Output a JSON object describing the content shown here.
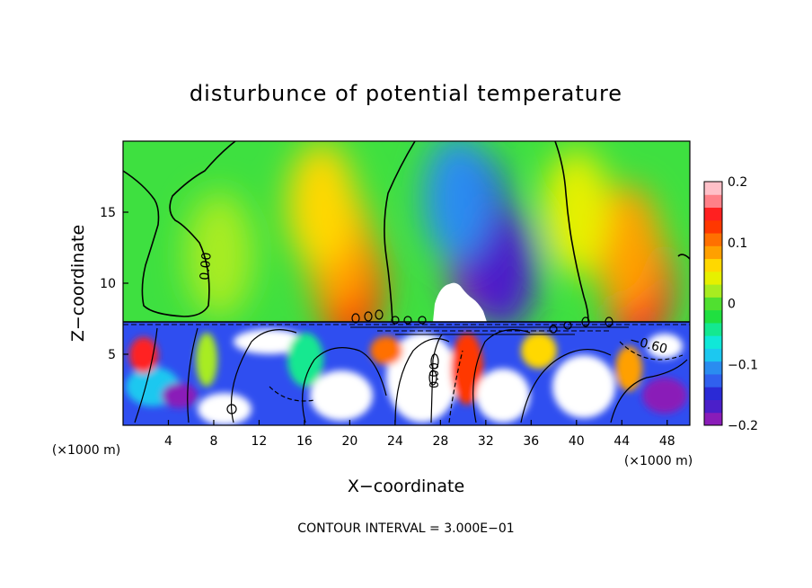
{
  "chart_data": {
    "type": "heatmap",
    "title": "disturbunce of potential temperature",
    "xlabel": "X−coordinate",
    "ylabel": "Z−coordinate",
    "x_unit": "(×1000 m)",
    "y_unit": "(×1000 m)",
    "xlim": [
      0,
      50
    ],
    "ylim": [
      0,
      20
    ],
    "x_ticks": [
      4,
      8,
      12,
      16,
      20,
      24,
      28,
      32,
      36,
      40,
      44,
      48
    ],
    "y_ticks": [
      5,
      10,
      15
    ],
    "colorbar": {
      "min": -0.2,
      "max": 0.2,
      "tick_values": [
        0.2,
        0.1,
        0,
        -0.1,
        -0.2
      ],
      "tick_labels": [
        "0.2",
        "0.1",
        "0",
        "−0.1",
        "−0.2"
      ],
      "colors": [
        "#8a1cb8",
        "#4b1fc9",
        "#2a2ad6",
        "#3060ee",
        "#2a8cf0",
        "#1cc8f0",
        "#10e8d8",
        "#14e890",
        "#20e040",
        "#50e030",
        "#a8ec20",
        "#e6f000",
        "#ffd800",
        "#ffa000",
        "#ff7000",
        "#ff3800",
        "#ff2020",
        "#ff8088",
        "#ffc0c8"
      ]
    },
    "contour_labels": [
      "0.00",
      "0.00",
      "−0.60"
    ],
    "annotation": "CONTOUR INTERVAL = 3.000E−01",
    "features": [
      {
        "x": 31.5,
        "z": 12.0,
        "value": -0.19
      },
      {
        "x": 31.0,
        "z": 15.0,
        "value": -0.15
      },
      {
        "x": 33.5,
        "z": 11.0,
        "value": -0.16
      },
      {
        "x": 29.5,
        "z": 16.0,
        "value": -0.1
      },
      {
        "x": 20.0,
        "z": 10.0,
        "value": 0.13
      },
      {
        "x": 19.0,
        "z": 12.5,
        "value": 0.09
      },
      {
        "x": 17.5,
        "z": 15.5,
        "value": 0.06
      },
      {
        "x": 45.5,
        "z": 10.0,
        "value": 0.14
      },
      {
        "x": 44.5,
        "z": 12.5,
        "value": 0.08
      },
      {
        "x": 8.5,
        "z": 12.0,
        "value": 0.02
      },
      {
        "x": 40.0,
        "z": 15.0,
        "value": 0.05
      }
    ]
  }
}
